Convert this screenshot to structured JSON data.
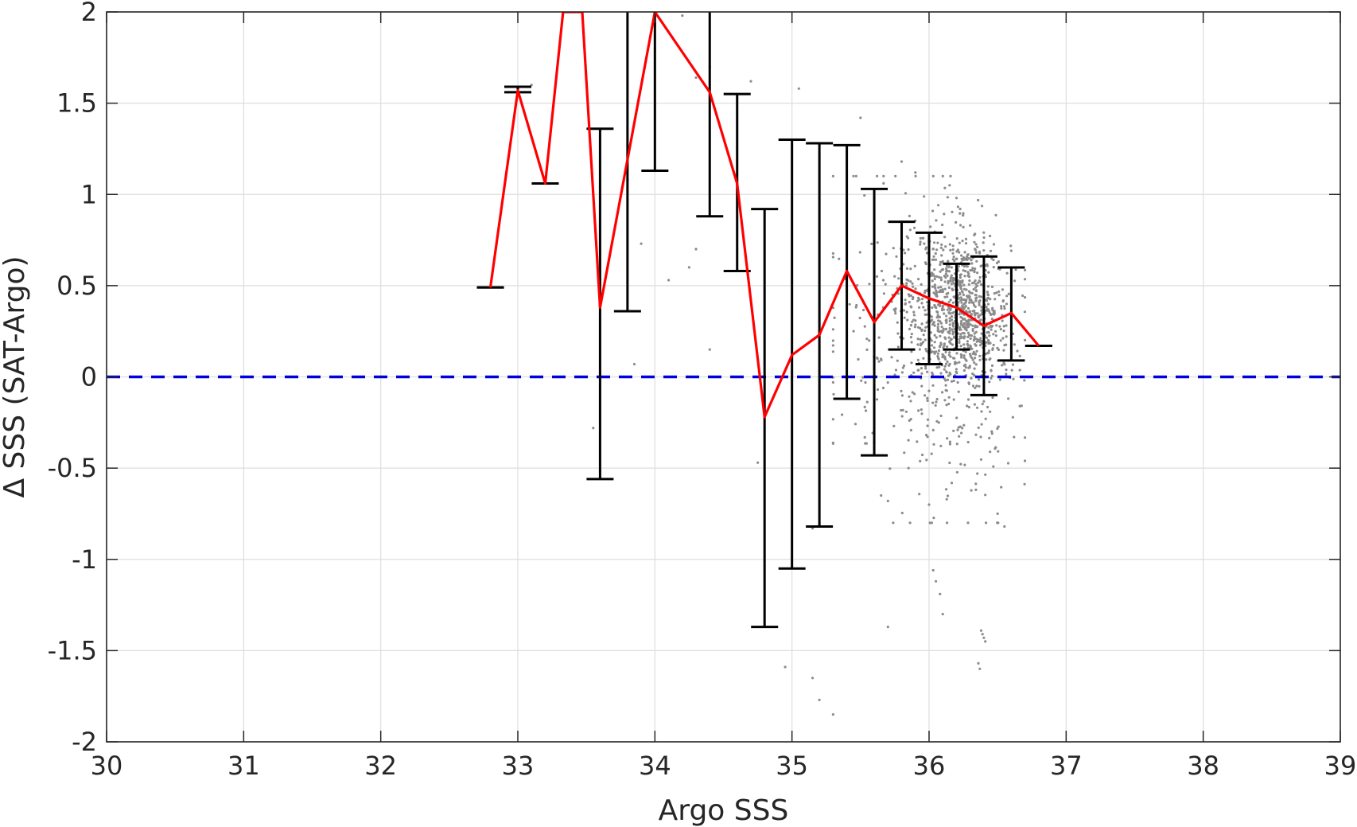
{
  "chart_data": {
    "type": "scatter",
    "title": "",
    "xlabel": "Argo SSS",
    "ylabel": "Δ SSS (SAT-Argo)",
    "xlim": [
      30,
      39
    ],
    "ylim": [
      -2,
      2
    ],
    "xticks": [
      30,
      31,
      32,
      33,
      34,
      35,
      36,
      37,
      38,
      39
    ],
    "yticks": [
      -2,
      -1.5,
      -1,
      -0.5,
      0,
      0.5,
      1,
      1.5,
      2
    ],
    "grid": true,
    "reference_line": {
      "y": 0,
      "style": "dashed",
      "color": "#0000dd"
    },
    "colors": {
      "scatter": "#8c8c8c",
      "mean_line": "#ff0000",
      "errorbars": "#000000",
      "axes": "#262626",
      "grid": "#dedede"
    },
    "scatter_clusters": [
      {
        "cx": 36.25,
        "cy": 0.38,
        "sx": 0.17,
        "sy": 0.2,
        "n": 820
      },
      {
        "cx": 35.95,
        "cy": 0.25,
        "sx": 0.22,
        "sy": 0.38,
        "n": 230
      },
      {
        "cx": 36.3,
        "cy": -0.15,
        "sx": 0.2,
        "sy": 0.35,
        "n": 140
      },
      {
        "cx": 35.5,
        "cy": 0.35,
        "sx": 0.25,
        "sy": 0.45,
        "n": 55
      }
    ],
    "scatter_points": [
      [
        34.3,
        1.64
      ],
      [
        34.4,
        1.7
      ],
      [
        34.7,
        1.62
      ],
      [
        35.05,
        1.58
      ],
      [
        35.5,
        1.42
      ],
      [
        34.3,
        0.7
      ],
      [
        34.1,
        0.53
      ],
      [
        33.9,
        0.73
      ],
      [
        33.85,
        0.07
      ],
      [
        33.55,
        -0.28
      ],
      [
        34.4,
        0.15
      ],
      [
        34.75,
        -0.47
      ],
      [
        34.95,
        -1.59
      ],
      [
        35.15,
        -1.65
      ],
      [
        35.2,
        -1.77
      ],
      [
        35.3,
        -1.85
      ],
      [
        35.15,
        -0.83
      ],
      [
        35.65,
        -0.65
      ],
      [
        35.7,
        -0.68
      ],
      [
        35.7,
        -1.37
      ],
      [
        36.03,
        -1.06
      ],
      [
        36.05,
        -1.12
      ],
      [
        36.08,
        -1.19
      ],
      [
        36.1,
        -1.3
      ],
      [
        36.0,
        -0.7
      ],
      [
        35.85,
        -0.5
      ],
      [
        36.38,
        -1.39
      ],
      [
        36.39,
        -1.41
      ],
      [
        36.4,
        -1.43
      ],
      [
        36.41,
        -1.45
      ],
      [
        36.36,
        -1.57
      ],
      [
        36.37,
        -1.6
      ],
      [
        36.5,
        -0.75
      ],
      [
        36.55,
        -0.82
      ],
      [
        33.1,
        1.6
      ],
      [
        33.8,
        1.08
      ],
      [
        34.2,
        1.98
      ],
      [
        34.25,
        0.6
      ],
      [
        35.8,
        1.18
      ],
      [
        35.9,
        1.12
      ],
      [
        36.15,
        1.05
      ],
      [
        36.2,
        0.98
      ],
      [
        36.3,
        0.83
      ]
    ],
    "mean_line": {
      "x": [
        32.8,
        33.0,
        33.2,
        33.33,
        33.47,
        33.6,
        34.0,
        34.4,
        34.6,
        34.8,
        35.0,
        35.2,
        35.4,
        35.6,
        35.8,
        36.0,
        36.2,
        36.4,
        36.6,
        36.8
      ],
      "y": [
        0.49,
        1.57,
        1.06,
        2.0,
        2.0,
        0.38,
        2.0,
        1.56,
        1.06,
        -0.22,
        0.12,
        0.23,
        0.58,
        0.3,
        0.5,
        0.43,
        0.38,
        0.28,
        0.35,
        0.17
      ]
    },
    "errorbars": [
      {
        "x": 32.8,
        "lower": 0.49,
        "upper": 0.49
      },
      {
        "x": 33.0,
        "lower": 1.56,
        "upper": 1.59
      },
      {
        "x": 33.2,
        "lower": 1.06,
        "upper": 1.06
      },
      {
        "x": 33.6,
        "lower": -0.56,
        "upper": 1.36
      },
      {
        "x": 33.8,
        "lower": 0.36,
        "upper": 2.0
      },
      {
        "x": 34.0,
        "lower": 1.13,
        "upper": 2.0
      },
      {
        "x": 34.4,
        "lower": 0.88,
        "upper": 2.0
      },
      {
        "x": 34.6,
        "lower": 0.58,
        "upper": 1.55
      },
      {
        "x": 34.8,
        "lower": -1.37,
        "upper": 0.92
      },
      {
        "x": 35.0,
        "lower": -1.05,
        "upper": 1.3
      },
      {
        "x": 35.2,
        "lower": -0.82,
        "upper": 1.28
      },
      {
        "x": 35.4,
        "lower": -0.12,
        "upper": 1.27
      },
      {
        "x": 35.6,
        "lower": -0.43,
        "upper": 1.03
      },
      {
        "x": 35.8,
        "lower": 0.15,
        "upper": 0.85
      },
      {
        "x": 36.0,
        "lower": 0.07,
        "upper": 0.79
      },
      {
        "x": 36.2,
        "lower": 0.15,
        "upper": 0.62
      },
      {
        "x": 36.4,
        "lower": -0.1,
        "upper": 0.66
      },
      {
        "x": 36.6,
        "lower": 0.09,
        "upper": 0.6
      },
      {
        "x": 36.8,
        "lower": 0.17,
        "upper": 0.17
      }
    ]
  }
}
